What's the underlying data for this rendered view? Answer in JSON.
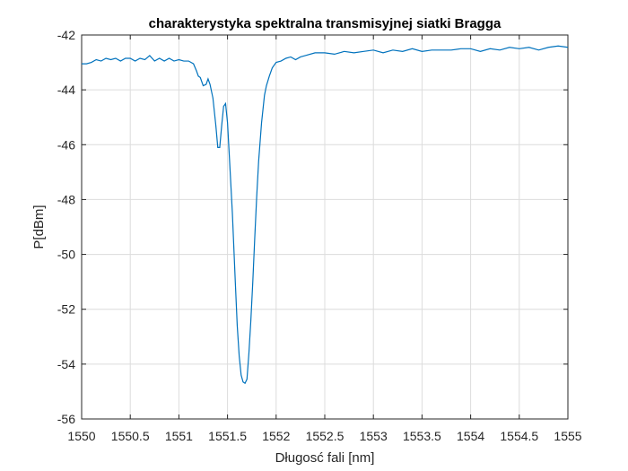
{
  "chart_data": {
    "type": "line",
    "title": "charakterystyka spektralna transmisyjnej siatki Bragga",
    "xlabel": "Długosć fali [nm]",
    "ylabel": "P[dBm]",
    "xlim": [
      1550,
      1555
    ],
    "ylim": [
      -56,
      -42
    ],
    "xticks": [
      1550,
      1550.5,
      1551,
      1551.5,
      1552,
      1552.5,
      1553,
      1553.5,
      1554,
      1554.5,
      1555
    ],
    "xtick_labels": [
      "1550",
      "1550.5",
      "1551",
      "1551.5",
      "1552",
      "1552.5",
      "1553",
      "1553.5",
      "1554",
      "1554.5",
      "1555"
    ],
    "yticks": [
      -42,
      -44,
      -46,
      -48,
      -50,
      -52,
      -54,
      -56
    ],
    "ytick_labels": [
      "-42",
      "-44",
      "-46",
      "-48",
      "-50",
      "-52",
      "-54",
      "-56"
    ],
    "grid": true,
    "line_color": "#0072BD",
    "series": [
      {
        "x": [
          1550,
          1550.05,
          1550.1,
          1550.15,
          1550.2,
          1550.25,
          1550.3,
          1550.35,
          1550.4,
          1550.45,
          1550.5,
          1550.55,
          1550.6,
          1550.65,
          1550.7,
          1550.75,
          1550.8,
          1550.85,
          1550.9,
          1550.95,
          1551,
          1551.05,
          1551.1,
          1551.15,
          1551.18,
          1551.2,
          1551.22,
          1551.25,
          1551.28,
          1551.3,
          1551.32,
          1551.35,
          1551.38,
          1551.4,
          1551.42,
          1551.44,
          1551.46,
          1551.48,
          1551.5,
          1551.52,
          1551.55,
          1551.58,
          1551.6,
          1551.62,
          1551.64,
          1551.66,
          1551.68,
          1551.7,
          1551.72,
          1551.74,
          1551.76,
          1551.78,
          1551.8,
          1551.82,
          1551.85,
          1551.88,
          1551.9,
          1551.93,
          1551.96,
          1552,
          1552.05,
          1552.1,
          1552.15,
          1552.2,
          1552.25,
          1552.3,
          1552.4,
          1552.5,
          1552.6,
          1552.7,
          1552.8,
          1552.9,
          1553,
          1553.1,
          1553.2,
          1553.3,
          1553.4,
          1553.5,
          1553.6,
          1553.7,
          1553.8,
          1553.9,
          1554,
          1554.1,
          1554.2,
          1554.3,
          1554.4,
          1554.5,
          1554.6,
          1554.7,
          1554.8,
          1554.9,
          1555
        ],
        "y": [
          -43.05,
          -43.05,
          -43.0,
          -42.9,
          -42.95,
          -42.85,
          -42.9,
          -42.85,
          -42.95,
          -42.85,
          -42.85,
          -42.95,
          -42.85,
          -42.9,
          -42.75,
          -42.95,
          -42.85,
          -42.95,
          -42.85,
          -42.95,
          -42.9,
          -42.95,
          -42.95,
          -43.05,
          -43.3,
          -43.5,
          -43.55,
          -43.85,
          -43.8,
          -43.6,
          -43.8,
          -44.3,
          -45.3,
          -46.1,
          -46.1,
          -45.3,
          -44.6,
          -44.5,
          -45.2,
          -46.5,
          -48.5,
          -51.0,
          -52.6,
          -53.7,
          -54.4,
          -54.65,
          -54.7,
          -54.55,
          -53.6,
          -52.4,
          -51.0,
          -49.4,
          -47.9,
          -46.6,
          -45.2,
          -44.2,
          -43.85,
          -43.5,
          -43.2,
          -43.0,
          -42.95,
          -42.85,
          -42.8,
          -42.9,
          -42.8,
          -42.75,
          -42.65,
          -42.65,
          -42.7,
          -42.6,
          -42.65,
          -42.6,
          -42.55,
          -42.65,
          -42.55,
          -42.6,
          -42.5,
          -42.6,
          -42.55,
          -42.55,
          -42.55,
          -42.5,
          -42.5,
          -42.6,
          -42.5,
          -42.55,
          -42.45,
          -42.5,
          -42.45,
          -42.55,
          -42.45,
          -42.4,
          -42.45
        ]
      }
    ]
  }
}
